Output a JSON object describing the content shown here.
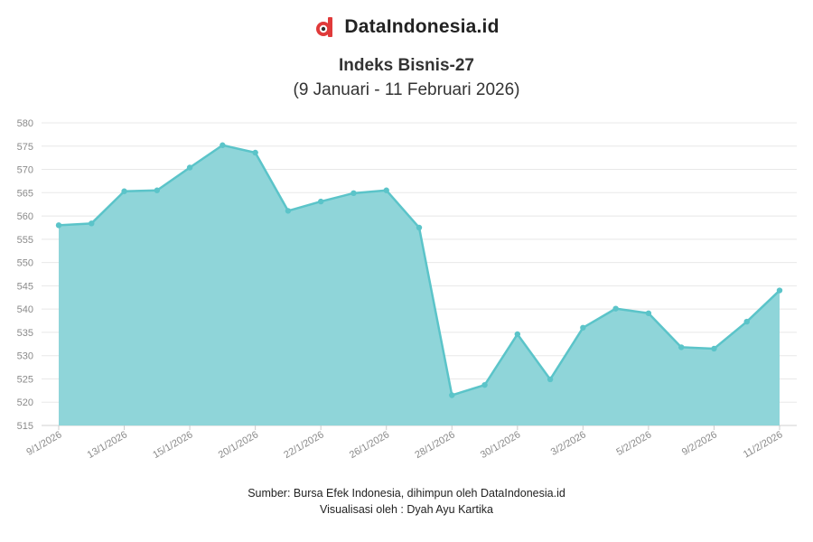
{
  "brand": {
    "name": "DataIndonesia.id",
    "logo_color": "#e03a3a"
  },
  "chart_data": {
    "type": "area",
    "title": "Indeks Bisnis-27",
    "subtitle": "(9 Januari - 11 Februari 2026)",
    "x": [
      "9/1/2026",
      "12/1/2026",
      "13/1/2026",
      "14/1/2026",
      "15/1/2026",
      "19/1/2026",
      "20/1/2026",
      "21/1/2026",
      "22/1/2026",
      "23/1/2026",
      "26/1/2026",
      "27/1/2026",
      "28/1/2026",
      "29/1/2026",
      "30/1/2026",
      "2/2/2026",
      "3/2/2026",
      "4/2/2026",
      "5/2/2026",
      "6/2/2026",
      "9/2/2026",
      "10/2/2026",
      "11/2/2026"
    ],
    "x_tick_labels": [
      "9/1/2026",
      "13/1/2026",
      "15/1/2026",
      "20/1/2026",
      "22/1/2026",
      "26/1/2026",
      "28/1/2026",
      "30/1/2026",
      "3/2/2026",
      "5/2/2026",
      "9/2/2026",
      "11/2/2026"
    ],
    "series": [
      {
        "values": [
          558.0,
          558.4,
          565.3,
          565.5,
          570.4,
          575.2,
          573.6,
          561.1,
          563.1,
          564.9,
          565.5,
          557.5,
          521.5,
          523.7,
          534.6,
          524.9,
          536.0,
          540.1,
          539.1,
          531.8,
          531.5,
          537.3,
          544.0
        ],
        "color": "#5bc4c9",
        "fill": "#8fd5d9"
      }
    ],
    "ylim": [
      515,
      580
    ],
    "y_ticks": [
      515,
      520,
      525,
      530,
      535,
      540,
      545,
      550,
      555,
      560,
      565,
      570,
      575,
      580
    ],
    "grid": true,
    "legend": "none"
  },
  "footer": {
    "source": "Sumber: Bursa Efek Indonesia, dihimpun oleh DataIndonesia.id",
    "credit": "Visualisasi oleh : Dyah Ayu Kartika"
  }
}
